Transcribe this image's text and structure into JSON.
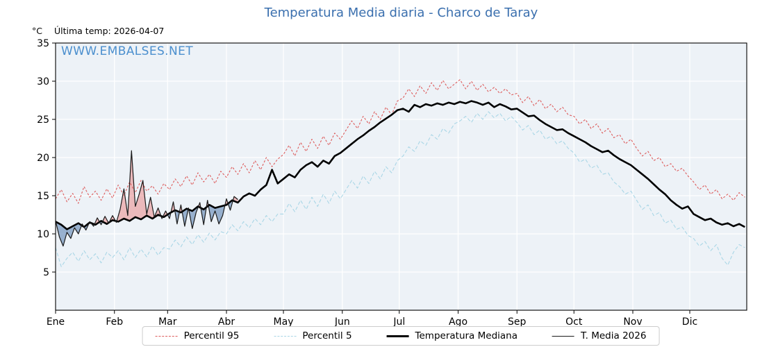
{
  "title": "Temperatura Media diaria - Charco de Taray",
  "watermark": "WWW.EMBALSES.NET",
  "header": {
    "y_unit": "°C",
    "last_temp": "Última temp: 2026-04-07"
  },
  "legend": [
    {
      "label": "Percentil 95",
      "color": "#dd5c5c",
      "style": "dashed",
      "thickness": 1.4
    },
    {
      "label": "Percentil 5",
      "color": "#a9d6e6",
      "style": "dashed",
      "thickness": 1.4
    },
    {
      "label": "Temperatura Mediana",
      "color": "#000000",
      "style": "solid",
      "thickness": 3
    },
    {
      "label": "T. Media 2026",
      "color": "#1a1a1a",
      "style": "solid",
      "thickness": 1.2
    }
  ],
  "chart_data": {
    "type": "line",
    "title": "Temperatura Media diaria - Charco de Taray",
    "xlabel": "",
    "ylabel": "°C",
    "ylim": [
      0,
      35
    ],
    "yticks": [
      5,
      10,
      15,
      20,
      25,
      30,
      35
    ],
    "x_unit": "day_of_year",
    "x_months": [
      "Ene",
      "Feb",
      "Mar",
      "Abr",
      "May",
      "Jun",
      "Jul",
      "Ago",
      "Sep",
      "Oct",
      "Nov",
      "Dic"
    ],
    "month_start_days": [
      1,
      32,
      60,
      91,
      121,
      152,
      182,
      213,
      244,
      274,
      305,
      335
    ],
    "grid": "white-on-light",
    "plot_bg": "#edf2f7",
    "fill_above": "rgba(233,139,139,0.55)",
    "fill_below": "rgba(104,140,185,0.65)",
    "legend_position": "bottom",
    "series": [
      {
        "name": "Percentil 95",
        "color": "#dd5c5c",
        "width": 1.1,
        "dash": "3 2.4",
        "x": [
          1,
          4,
          7,
          10,
          13,
          16,
          19,
          22,
          25,
          28,
          31,
          34,
          37,
          40,
          43,
          46,
          49,
          52,
          55,
          58,
          61,
          64,
          67,
          70,
          73,
          76,
          79,
          82,
          85,
          88,
          91,
          94,
          97,
          100,
          103,
          106,
          109,
          112,
          115,
          118,
          121,
          124,
          127,
          130,
          133,
          136,
          139,
          142,
          145,
          148,
          151,
          154,
          157,
          160,
          163,
          166,
          169,
          172,
          175,
          178,
          181,
          184,
          187,
          190,
          193,
          196,
          199,
          202,
          205,
          208,
          211,
          214,
          217,
          220,
          223,
          226,
          229,
          232,
          235,
          238,
          241,
          244,
          247,
          250,
          253,
          256,
          259,
          262,
          265,
          268,
          271,
          274,
          277,
          280,
          283,
          286,
          289,
          292,
          295,
          298,
          301,
          304,
          307,
          310,
          313,
          316,
          319,
          322,
          325,
          328,
          331,
          334,
          337,
          340,
          343,
          346,
          349,
          352,
          355,
          358,
          361,
          364
        ],
        "y": [
          14.6,
          15.8,
          14.2,
          15.3,
          14.0,
          16.2,
          14.8,
          15.6,
          14.4,
          15.9,
          14.7,
          16.4,
          15.0,
          16.8,
          15.4,
          17.0,
          15.6,
          16.3,
          15.2,
          16.6,
          15.8,
          17.2,
          16.2,
          17.6,
          16.4,
          18.0,
          16.8,
          17.8,
          16.6,
          18.2,
          17.4,
          18.8,
          17.8,
          19.2,
          18.0,
          19.6,
          18.4,
          20.0,
          18.8,
          19.8,
          20.4,
          21.6,
          20.2,
          22.0,
          20.8,
          22.4,
          21.2,
          22.8,
          21.6,
          23.2,
          22.4,
          23.6,
          24.8,
          23.8,
          25.4,
          24.4,
          26.0,
          25.0,
          26.6,
          25.6,
          27.4,
          27.8,
          29.0,
          28.0,
          29.4,
          28.4,
          29.8,
          28.8,
          30.1,
          29.0,
          29.6,
          30.2,
          29.0,
          30.0,
          28.8,
          29.6,
          28.6,
          29.2,
          28.4,
          29.0,
          28.2,
          28.4,
          27.2,
          28.0,
          26.8,
          27.6,
          26.4,
          27.0,
          26.0,
          26.6,
          25.6,
          25.4,
          24.4,
          25.0,
          23.8,
          24.4,
          23.2,
          23.8,
          22.6,
          23.0,
          21.8,
          22.4,
          21.2,
          20.2,
          20.8,
          19.6,
          20.0,
          18.8,
          19.2,
          18.2,
          18.6,
          17.6,
          16.8,
          15.8,
          16.4,
          15.2,
          15.8,
          14.6,
          15.2,
          14.4,
          15.4,
          14.8
        ]
      },
      {
        "name": "Percentil 5",
        "color": "#a9d6e6",
        "width": 1.1,
        "dash": "5 3",
        "x": [
          1,
          4,
          7,
          10,
          13,
          16,
          19,
          22,
          25,
          28,
          31,
          34,
          37,
          40,
          43,
          46,
          49,
          52,
          55,
          58,
          61,
          64,
          67,
          70,
          73,
          76,
          79,
          82,
          85,
          88,
          91,
          94,
          97,
          100,
          103,
          106,
          109,
          112,
          115,
          118,
          121,
          124,
          127,
          130,
          133,
          136,
          139,
          142,
          145,
          148,
          151,
          154,
          157,
          160,
          163,
          166,
          169,
          172,
          175,
          178,
          181,
          184,
          187,
          190,
          193,
          196,
          199,
          202,
          205,
          208,
          211,
          214,
          217,
          220,
          223,
          226,
          229,
          232,
          235,
          238,
          241,
          244,
          247,
          250,
          253,
          256,
          259,
          262,
          265,
          268,
          271,
          274,
          277,
          280,
          283,
          286,
          289,
          292,
          295,
          298,
          301,
          304,
          307,
          310,
          313,
          316,
          319,
          322,
          325,
          328,
          331,
          334,
          337,
          340,
          343,
          346,
          349,
          352,
          355,
          358,
          361,
          364
        ],
        "y": [
          8.2,
          5.7,
          6.8,
          7.6,
          6.4,
          7.8,
          6.6,
          7.4,
          6.2,
          7.6,
          6.9,
          7.8,
          6.6,
          8.2,
          6.9,
          8.0,
          7.0,
          8.4,
          7.2,
          8.2,
          8.0,
          9.2,
          8.3,
          9.6,
          8.6,
          9.9,
          8.9,
          10.1,
          9.2,
          10.3,
          10.0,
          11.2,
          10.4,
          11.6,
          10.8,
          12.0,
          11.2,
          12.4,
          11.6,
          12.6,
          12.6,
          14.0,
          12.9,
          14.4,
          13.2,
          14.8,
          13.6,
          15.2,
          14.0,
          15.6,
          14.6,
          15.8,
          17.0,
          16.0,
          17.6,
          16.6,
          18.2,
          17.2,
          18.8,
          18.0,
          19.6,
          20.2,
          21.4,
          20.8,
          22.2,
          21.6,
          23.0,
          22.4,
          23.8,
          23.2,
          24.4,
          24.8,
          25.4,
          24.6,
          25.8,
          25.0,
          26.0,
          25.2,
          25.8,
          24.8,
          25.4,
          24.6,
          23.6,
          24.2,
          23.0,
          23.6,
          22.4,
          22.8,
          21.8,
          22.2,
          21.2,
          20.6,
          19.4,
          19.8,
          18.6,
          19.0,
          17.8,
          18.0,
          16.8,
          16.2,
          15.2,
          15.6,
          14.4,
          13.2,
          13.8,
          12.4,
          12.8,
          11.4,
          11.8,
          10.6,
          10.9,
          9.8,
          9.4,
          8.4,
          9.0,
          7.8,
          8.6,
          6.8,
          5.9,
          7.6,
          8.6,
          8.2
        ]
      },
      {
        "name": "Temperatura Mediana",
        "color": "#000000",
        "width": 2.6,
        "x": [
          1,
          4,
          7,
          10,
          13,
          16,
          19,
          22,
          25,
          28,
          31,
          34,
          37,
          40,
          43,
          46,
          49,
          52,
          55,
          58,
          61,
          64,
          67,
          70,
          73,
          76,
          79,
          82,
          85,
          88,
          91,
          94,
          97,
          100,
          103,
          106,
          109,
          112,
          115,
          118,
          121,
          124,
          127,
          130,
          133,
          136,
          139,
          142,
          145,
          148,
          151,
          154,
          157,
          160,
          163,
          166,
          169,
          172,
          175,
          178,
          181,
          184,
          187,
          190,
          193,
          196,
          199,
          202,
          205,
          208,
          211,
          214,
          217,
          220,
          223,
          226,
          229,
          232,
          235,
          238,
          241,
          244,
          247,
          250,
          253,
          256,
          259,
          262,
          265,
          268,
          271,
          274,
          277,
          280,
          283,
          286,
          289,
          292,
          295,
          298,
          301,
          304,
          307,
          310,
          313,
          316,
          319,
          322,
          325,
          328,
          331,
          334,
          337,
          340,
          343,
          346,
          349,
          352,
          355,
          358,
          361,
          364
        ],
        "y": [
          11.6,
          11.2,
          10.6,
          11.0,
          11.4,
          10.9,
          11.5,
          11.2,
          11.7,
          11.3,
          11.8,
          11.6,
          12.0,
          11.7,
          12.2,
          11.9,
          12.4,
          12.0,
          12.5,
          12.2,
          12.7,
          13.1,
          12.8,
          13.3,
          13.0,
          13.6,
          13.2,
          13.8,
          13.4,
          13.6,
          13.8,
          14.4,
          14.1,
          14.9,
          15.3,
          15.0,
          15.8,
          16.4,
          18.4,
          16.6,
          17.2,
          17.8,
          17.4,
          18.4,
          19.0,
          19.4,
          18.8,
          19.6,
          19.2,
          20.2,
          20.6,
          21.2,
          21.8,
          22.4,
          22.9,
          23.5,
          24.0,
          24.6,
          25.1,
          25.6,
          26.2,
          26.4,
          26.0,
          26.9,
          26.6,
          27.0,
          26.8,
          27.1,
          26.9,
          27.2,
          27.0,
          27.3,
          27.1,
          27.4,
          27.2,
          26.9,
          27.2,
          26.6,
          27.0,
          26.7,
          26.3,
          26.4,
          25.9,
          25.4,
          25.5,
          24.9,
          24.4,
          24.0,
          23.6,
          23.7,
          23.2,
          22.8,
          22.4,
          22.0,
          21.5,
          21.1,
          20.7,
          20.9,
          20.3,
          19.8,
          19.4,
          19.0,
          18.4,
          17.8,
          17.2,
          16.5,
          15.8,
          15.2,
          14.4,
          13.8,
          13.3,
          13.6,
          12.6,
          12.2,
          11.8,
          12.0,
          11.5,
          11.2,
          11.4,
          11.0,
          11.3,
          10.9
        ]
      },
      {
        "name": "T. Media 2026",
        "color": "#1a1a1a",
        "width": 1.2,
        "x": [
          1,
          3,
          5,
          7,
          9,
          11,
          13,
          15,
          17,
          19,
          21,
          23,
          25,
          27,
          29,
          31,
          33,
          35,
          37,
          39,
          41,
          43,
          45,
          47,
          49,
          51,
          53,
          55,
          57,
          59,
          61,
          63,
          65,
          67,
          69,
          71,
          73,
          75,
          77,
          79,
          81,
          83,
          85,
          87,
          89,
          91,
          93,
          95,
          97
        ],
        "y": [
          11.7,
          9.6,
          8.4,
          10.2,
          9.4,
          10.8,
          10.0,
          11.3,
          10.5,
          11.6,
          11.0,
          12.1,
          11.2,
          12.3,
          11.4,
          12.4,
          11.5,
          13.2,
          15.9,
          12.4,
          20.9,
          13.6,
          15.2,
          17.0,
          12.6,
          14.8,
          12.2,
          13.4,
          12.0,
          13.0,
          12.0,
          14.2,
          11.3,
          13.8,
          11.0,
          13.4,
          10.7,
          12.8,
          14.1,
          11.2,
          14.4,
          11.6,
          13.0,
          11.3,
          12.4,
          14.6,
          13.1,
          14.9,
          14.5
        ]
      }
    ]
  }
}
